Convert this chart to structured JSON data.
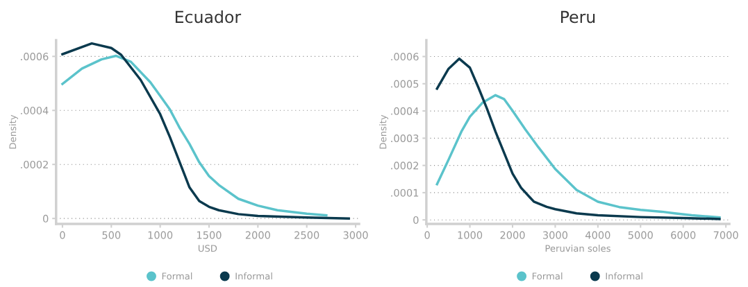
{
  "chart_data": [
    {
      "type": "line",
      "title": "Ecuador",
      "xlabel": "USD",
      "ylabel": "Density",
      "xlim": [
        -65,
        3035
      ],
      "ylim": [
        -2e-05,
        0.00066
      ],
      "xticks": [
        0,
        500,
        1000,
        1500,
        2000,
        2500,
        3000
      ],
      "yticks": [
        {
          "value": 0,
          "label": "0"
        },
        {
          "value": 0.0002,
          "label": ".0002"
        },
        {
          "value": 0.0004,
          "label": ".0004"
        },
        {
          "value": 0.0006,
          "label": ".0006"
        }
      ],
      "grid": "y",
      "legend": "bottom",
      "line_style": "solid",
      "series": [
        {
          "name": "Formal",
          "color": "#5bc3cb",
          "x": [
            0,
            200,
            400,
            550,
            700,
            900,
            1000,
            1100,
            1200,
            1300,
            1400,
            1500,
            1600,
            1800,
            2000,
            2200,
            2500,
            2700
          ],
          "values": [
            0.000498,
            0.000555,
            0.000589,
            0.000602,
            0.00058,
            0.000504,
            0.000454,
            0.000403,
            0.000335,
            0.000276,
            0.000208,
            0.000157,
            0.000124,
            7.28e-05,
            4.74e-05,
            3.05e-05,
            1.78e-05,
            1.18e-05
          ]
        },
        {
          "name": "Informal",
          "color": "#0b3a4e",
          "x": [
            0,
            300,
            500,
            600,
            800,
            1000,
            1100,
            1200,
            1300,
            1400,
            1500,
            1600,
            1800,
            2000,
            2500,
            2930
          ],
          "values": [
            0.000608,
            0.000648,
            0.000631,
            0.000606,
            0.000513,
            0.000386,
            0.000301,
            0.000208,
            0.000115,
            6.43e-05,
            4.32e-05,
            3.05e-05,
            1.6e-05,
            9.3e-06,
            3.4e-06,
            0.0
          ]
        }
      ]
    },
    {
      "type": "line",
      "title": "Peru",
      "xlabel": "Peruvian soles",
      "ylabel": "Density",
      "xlim": [
        -20,
        7080
      ],
      "ylim": [
        -1.46e-05,
        0.00066
      ],
      "xticks": [
        0,
        1000,
        2000,
        3000,
        4000,
        5000,
        6000,
        7000
      ],
      "yticks": [
        {
          "value": 0,
          "label": "0"
        },
        {
          "value": 0.0001,
          "label": ".0001"
        },
        {
          "value": 0.0002,
          "label": ".0002"
        },
        {
          "value": 0.0003,
          "label": ".0003"
        },
        {
          "value": 0.0004,
          "label": ".0004"
        },
        {
          "value": 0.0005,
          "label": ".0005"
        },
        {
          "value": 0.0006,
          "label": ".0006"
        }
      ],
      "grid": "y",
      "legend": "bottom",
      "line_style": "solid",
      "series": [
        {
          "name": "Formal",
          "color": "#5bc3cb",
          "x": [
            230,
            500,
            800,
            1000,
            1300,
            1600,
            1800,
            2000,
            2300,
            2600,
            3000,
            3500,
            4000,
            4500,
            5000,
            5500,
            5800,
            6200,
            6850
          ],
          "values": [
            0.000131,
            0.000221,
            0.000324,
            0.000379,
            0.000431,
            0.000458,
            0.000444,
            0.000401,
            0.000332,
            0.000268,
            0.000187,
            0.00011,
            6.68e-05,
            4.71e-05,
            3.68e-05,
            3e-05,
            2.4e-05,
            1.71e-05,
            9.4e-06
          ]
        },
        {
          "name": "Informal",
          "color": "#0b3a4e",
          "x": [
            230,
            500,
            750,
            1000,
            1200,
            1400,
            1600,
            1800,
            2000,
            2200,
            2500,
            2800,
            3000,
            3500,
            4000,
            5000,
            6000,
            6850
          ],
          "values": [
            0.000482,
            0.000555,
            0.000592,
            0.000559,
            0.000486,
            0.000409,
            0.000324,
            0.000247,
            0.00017,
            0.000118,
            6.68e-05,
            4.8e-05,
            3.94e-05,
            2.4e-05,
            1.7e-05,
            1.03e-05,
            6.8e-06,
            3.4e-06
          ]
        }
      ]
    }
  ]
}
